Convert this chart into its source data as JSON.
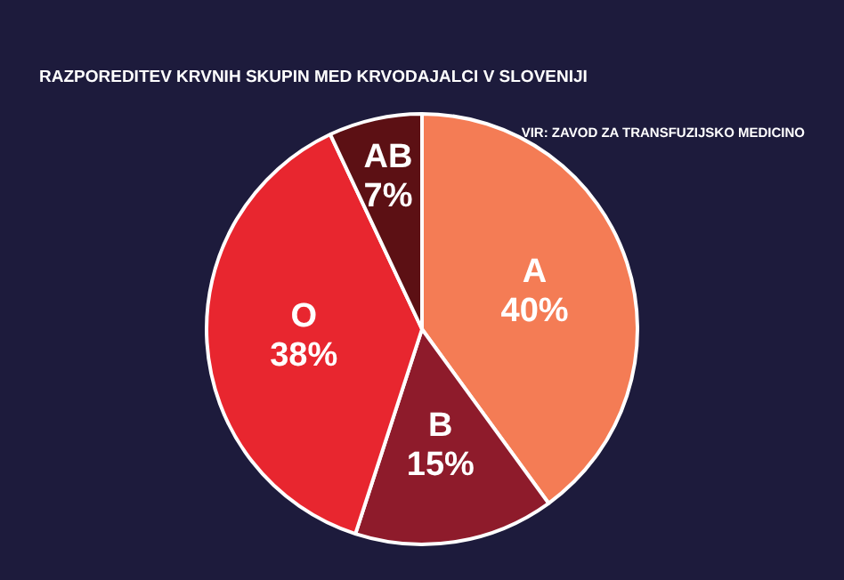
{
  "chart_data": {
    "type": "pie",
    "title": "RAZPOREDITEV KRVNIH SKUPIN MED KRVODAJALCI V SLOVENIJI",
    "annotations": [
      "VIR: ZAVOD ZA TRANSFUZIJSKO MEDICINO"
    ],
    "categories": [
      "A",
      "B",
      "O",
      "AB"
    ],
    "values": [
      40,
      15,
      38,
      7
    ],
    "value_labels": [
      "40%",
      "15%",
      "38%",
      "7%"
    ],
    "colors": [
      "#f47c55",
      "#8e1b2b",
      "#e8262f",
      "#5c1014"
    ]
  }
}
